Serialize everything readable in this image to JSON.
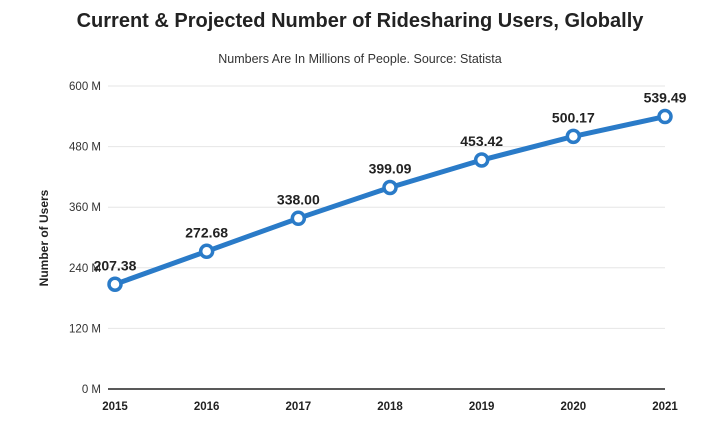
{
  "chart_data": {
    "type": "line",
    "title": "Current & Projected Number of Ridesharing Users, Globally",
    "subtitle": "Numbers Are In Millions of People. Source: Statista",
    "xlabel": "",
    "ylabel": "Number of Users",
    "x": [
      "2015",
      "2016",
      "2017",
      "2018",
      "2019",
      "2020",
      "2021"
    ],
    "series": [
      {
        "values": [
          207.38,
          272.68,
          338.0,
          399.09,
          453.42,
          500.17,
          539.49
        ],
        "data_labels": [
          "207.38",
          "272.68",
          "338.00",
          "399.09",
          "453.42",
          "500.17",
          "539.49"
        ]
      }
    ],
    "ylim": [
      0,
      600
    ],
    "yticks": [
      0,
      120,
      240,
      360,
      480,
      600
    ],
    "ytick_labels": [
      "0 M",
      "120 M",
      "240 M",
      "360 M",
      "480 M",
      "600 M"
    ],
    "grid": true,
    "color": "#2a7bc8"
  }
}
